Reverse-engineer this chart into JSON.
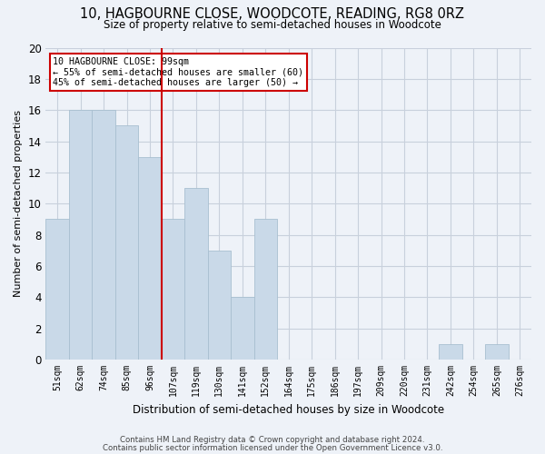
{
  "title": "10, HAGBOURNE CLOSE, WOODCOTE, READING, RG8 0RZ",
  "subtitle": "Size of property relative to semi-detached houses in Woodcote",
  "xlabel": "Distribution of semi-detached houses by size in Woodcote",
  "ylabel": "Number of semi-detached properties",
  "categories": [
    "51sqm",
    "62sqm",
    "74sqm",
    "85sqm",
    "96sqm",
    "107sqm",
    "119sqm",
    "130sqm",
    "141sqm",
    "152sqm",
    "164sqm",
    "175sqm",
    "186sqm",
    "197sqm",
    "209sqm",
    "220sqm",
    "231sqm",
    "242sqm",
    "254sqm",
    "265sqm",
    "276sqm"
  ],
  "values": [
    9,
    16,
    16,
    15,
    13,
    9,
    11,
    7,
    4,
    9,
    0,
    0,
    0,
    0,
    0,
    0,
    0,
    1,
    0,
    1,
    0
  ],
  "bar_color": "#c9d9e8",
  "bar_edge_color": "#a8bfd0",
  "grid_color": "#c8d0dc",
  "background_color": "#eef2f8",
  "property_line_x": 4.5,
  "annotation_text_line1": "10 HAGBOURNE CLOSE: 99sqm",
  "annotation_text_line2": "← 55% of semi-detached houses are smaller (60)",
  "annotation_text_line3": "45% of semi-detached houses are larger (50) →",
  "annotation_box_color": "#ffffff",
  "annotation_box_edge": "#cc0000",
  "property_line_color": "#cc0000",
  "ylim": [
    0,
    20
  ],
  "footnote1": "Contains HM Land Registry data © Crown copyright and database right 2024.",
  "footnote2": "Contains public sector information licensed under the Open Government Licence v3.0."
}
